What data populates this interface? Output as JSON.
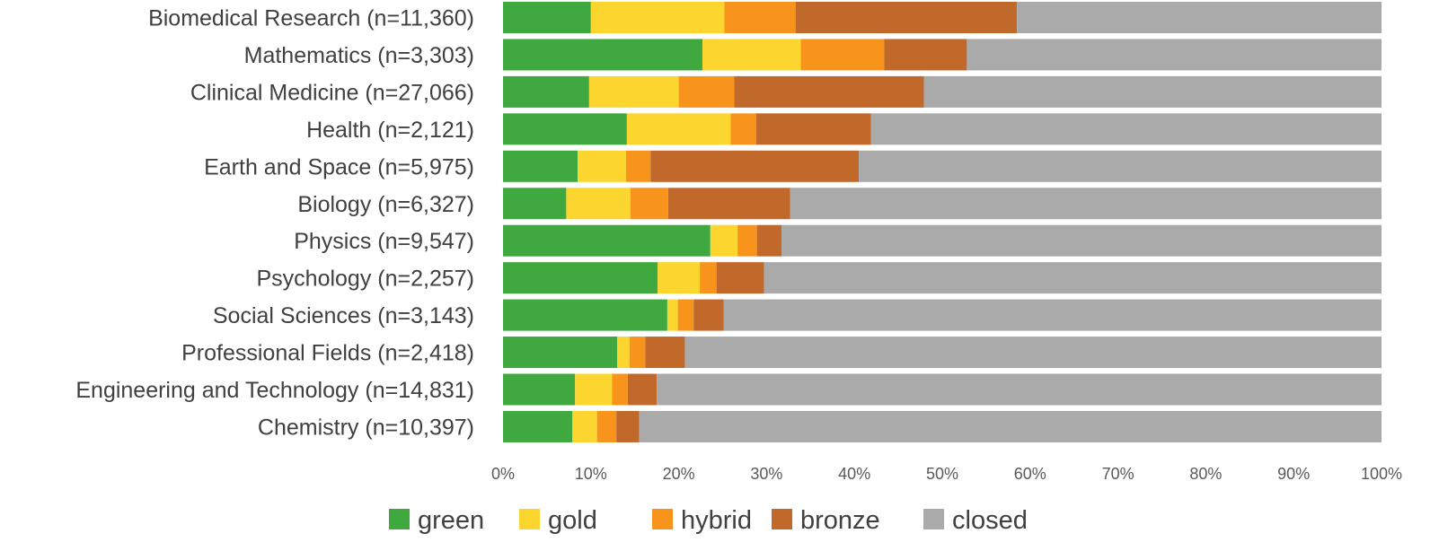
{
  "chart_data": {
    "type": "bar",
    "orientation": "horizontal",
    "stacked": true,
    "categories": [
      "Biomedical Research (n=11,360)",
      "Mathematics (n=3,303)",
      "Clinical Medicine (n=27,066)",
      "Health (n=2,121)",
      "Earth and Space (n=5,975)",
      "Biology (n=6,327)",
      "Physics (n=9,547)",
      "Psychology (n=2,257)",
      "Social Sciences (n=3,143)",
      "Professional Fields (n=2,418)",
      "Engineering and Technology (n=14,831)",
      "Chemistry (n=10,397)"
    ],
    "series": [
      {
        "name": "green",
        "color": "#3fa83f",
        "values": [
          10.0,
          22.7,
          9.8,
          14.1,
          8.5,
          7.2,
          23.6,
          17.6,
          18.7,
          13.0,
          8.2,
          7.9
        ]
      },
      {
        "name": "gold",
        "color": "#fcd52f",
        "values": [
          15.2,
          11.2,
          10.2,
          11.8,
          5.5,
          7.3,
          3.1,
          4.8,
          1.2,
          1.4,
          4.2,
          2.8
        ]
      },
      {
        "name": "hybrid",
        "color": "#f8941c",
        "values": [
          8.1,
          9.5,
          6.3,
          2.9,
          2.8,
          4.3,
          2.2,
          1.9,
          1.8,
          1.8,
          1.8,
          2.2
        ]
      },
      {
        "name": "bronze",
        "color": "#c1692a",
        "values": [
          25.2,
          9.4,
          21.6,
          13.1,
          23.7,
          13.9,
          2.8,
          5.4,
          3.4,
          4.5,
          3.3,
          2.6
        ]
      },
      {
        "name": "closed",
        "color": "#aaaaaa",
        "values": [
          41.5,
          47.2,
          52.1,
          58.1,
          59.5,
          67.3,
          68.3,
          70.3,
          74.9,
          79.3,
          82.5,
          84.5
        ]
      }
    ],
    "xlim": [
      0,
      100
    ],
    "xticks": [
      "0%",
      "10%",
      "20%",
      "30%",
      "40%",
      "50%",
      "60%",
      "70%",
      "80%",
      "90%",
      "100%"
    ],
    "title": "",
    "xlabel": "",
    "ylabel": "",
    "legend": "bottom",
    "grid": false
  }
}
